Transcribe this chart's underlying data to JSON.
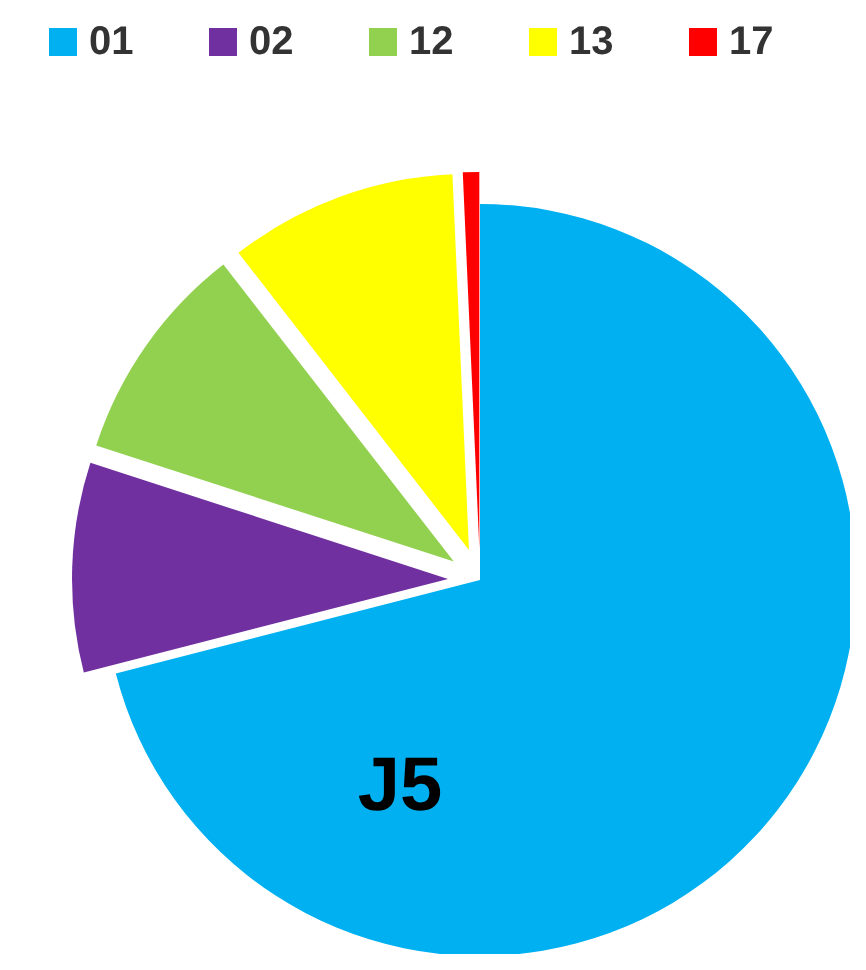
{
  "chart_data": {
    "type": "pie",
    "categories": [
      "01",
      "02",
      "12",
      "13",
      "17"
    ],
    "values": [
      71,
      9,
      9.5,
      9.8,
      0.7
    ],
    "colors": [
      "#00b0f0",
      "#7030a0",
      "#92d050",
      "#ffff00",
      "#ff0000"
    ],
    "legend": "top",
    "annotations": [
      "J5"
    ]
  }
}
